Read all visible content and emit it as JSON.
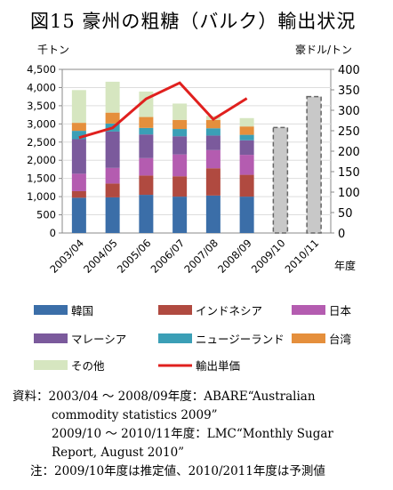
{
  "title": "図15 豪州の粗糖（バルク）輸出状況",
  "chart_data": {
    "type": "bar",
    "categories": [
      "2003/04",
      "2004/05",
      "2005/06",
      "2006/07",
      "2007/08",
      "2008/09",
      "2009/10",
      "2010/11"
    ],
    "left_axis": {
      "unit": "千トン",
      "ylim": [
        0,
        4500
      ],
      "ticks": [
        "0",
        "500",
        "1,000",
        "1,500",
        "2,000",
        "2,500",
        "3,000",
        "3,500",
        "4,000",
        "4,500"
      ]
    },
    "right_axis": {
      "unit": "豪ドル/トン",
      "ylim": [
        0,
        400
      ],
      "ticks": [
        "0",
        "50",
        "100",
        "150",
        "200",
        "250",
        "300",
        "350",
        "400"
      ]
    },
    "x_unit": "年度",
    "stacked_series": [
      {
        "name": "韓国",
        "color": "#3b6ea8",
        "values": [
          970,
          980,
          1050,
          1000,
          1030,
          1000,
          null,
          null
        ]
      },
      {
        "name": "インドネシア",
        "color": "#b04a40",
        "values": [
          180,
          380,
          530,
          560,
          750,
          600,
          null,
          null
        ]
      },
      {
        "name": "日本",
        "color": "#b45cb0",
        "values": [
          480,
          430,
          480,
          600,
          500,
          550,
          null,
          null
        ]
      },
      {
        "name": "マレーシア",
        "color": "#7b5a9c",
        "values": [
          950,
          1000,
          650,
          500,
          400,
          400,
          null,
          null
        ]
      },
      {
        "name": "ニュージーランド",
        "color": "#3b9fb6",
        "values": [
          230,
          220,
          180,
          200,
          200,
          150,
          null,
          null
        ]
      },
      {
        "name": "台湾",
        "color": "#e58f3c",
        "values": [
          220,
          300,
          300,
          250,
          230,
          230,
          null,
          null
        ]
      },
      {
        "name": "その他",
        "color": "#d6e6c0",
        "values": [
          900,
          850,
          700,
          450,
          110,
          230,
          null,
          null
        ]
      }
    ],
    "estimate_totals": {
      "name": "推定・予測",
      "color": "#c8c8c8",
      "values": [
        null,
        null,
        null,
        null,
        null,
        null,
        2900,
        3750
      ]
    },
    "line_series": {
      "name": "輸出単価",
      "color": "#e0201e",
      "axis": "right",
      "values": [
        233,
        257,
        328,
        367,
        278,
        329,
        null,
        null
      ]
    },
    "legend": [
      "韓国",
      "インドネシア",
      "日本",
      "マレーシア",
      "ニュージーランド",
      "台湾",
      "その他",
      "輸出単価"
    ]
  },
  "source": {
    "label": "資料：",
    "line1": "2003/04 ～ 2008/09年度：ABARE“Australian",
    "line2": "commodity statistics 2009”",
    "line3": "2009/10 ～ 2010/11年度：LMC“Monthly Sugar",
    "line4": "Report, August 2010”"
  },
  "note": {
    "label": "注：",
    "text": "2009/10年度は推定値、2010/2011年度は予測値"
  }
}
